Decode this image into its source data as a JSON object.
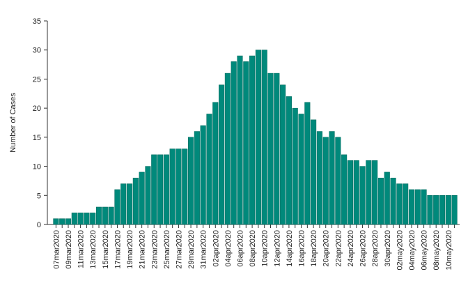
{
  "chart_data": {
    "type": "bar",
    "title": "",
    "xlabel": "",
    "ylabel": "Number of Cases",
    "ylim": [
      0,
      35
    ],
    "yticks": [
      0,
      5,
      10,
      15,
      20,
      25,
      30,
      35
    ],
    "grid": false,
    "bar_color": "#00897B",
    "categories": [
      "07mar2020",
      "08mar2020",
      "09mar2020",
      "10mar2020",
      "11mar2020",
      "12mar2020",
      "13mar2020",
      "14mar2020",
      "15mar2020",
      "16mar2020",
      "17mar2020",
      "18mar2020",
      "19mar2020",
      "20mar2020",
      "21mar2020",
      "22mar2020",
      "23mar2020",
      "24mar2020",
      "25mar2020",
      "26mar2020",
      "27mar2020",
      "28mar2020",
      "29mar2020",
      "30mar2020",
      "31mar2020",
      "01apr2020",
      "02apr2020",
      "03apr2020",
      "04apr2020",
      "05apr2020",
      "06apr2020",
      "07apr2020",
      "08apr2020",
      "09apr2020",
      "10apr2020",
      "11apr2020",
      "12apr2020",
      "13apr2020",
      "14apr2020",
      "15apr2020",
      "16apr2020",
      "17apr2020",
      "18apr2020",
      "19apr2020",
      "20apr2020",
      "21apr2020",
      "22apr2020",
      "23apr2020",
      "24apr2020",
      "25apr2020",
      "26apr2020",
      "27apr2020",
      "28apr2020",
      "29apr2020",
      "30apr2020",
      "01may2020",
      "02may2020",
      "03may2020",
      "04may2020",
      "05may2020",
      "06may2020",
      "07may2020",
      "08may2020",
      "09may2020",
      "10may2020",
      "11may2020"
    ],
    "tick_labels": [
      "07mar2020",
      "09mar2020",
      "11mar2020",
      "13mar2020",
      "15mar2020",
      "17mar2020",
      "19mar2020",
      "21mar2020",
      "23mar2020",
      "25mar2020",
      "27mar2020",
      "29mar2020",
      "31mar2020",
      "02apr2020",
      "04apr2020",
      "06apr2020",
      "08apr2020",
      "10apr2020",
      "12apr2020",
      "14apr2020",
      "16apr2020",
      "18apr2020",
      "20apr2020",
      "22apr2020",
      "24apr2020",
      "26apr2020",
      "28apr2020",
      "30apr2020",
      "02may2020",
      "04may2020",
      "06may2020",
      "08may2020",
      "10may2020"
    ],
    "values": [
      1,
      1,
      1,
      2,
      2,
      2,
      2,
      3,
      3,
      3,
      6,
      7,
      7,
      8,
      9,
      10,
      12,
      12,
      12,
      13,
      13,
      13,
      15,
      16,
      17,
      19,
      21,
      24,
      26,
      28,
      29,
      28,
      29,
      30,
      30,
      26,
      26,
      24,
      22,
      20,
      19,
      21,
      18,
      16,
      15,
      16,
      15,
      12,
      11,
      11,
      10,
      11,
      11,
      8,
      9,
      8,
      7,
      7,
      6,
      6,
      6,
      5,
      5,
      5,
      5,
      5
    ]
  }
}
